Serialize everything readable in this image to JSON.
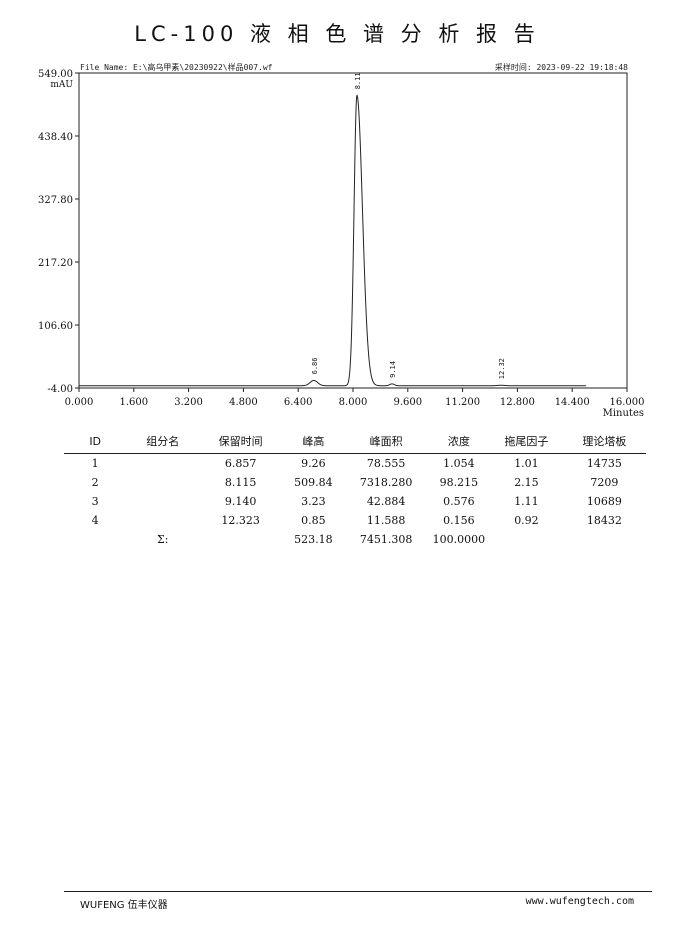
{
  "report": {
    "title": "LC-100 液 相 色 谱 分 析 报 告",
    "file_name": "File Name: E:\\高乌甲素\\20230922\\样品007.wf",
    "acq_time": "采样时间: 2023-09-22 19:18:48"
  },
  "chart_data": {
    "type": "line",
    "title": "",
    "xlabel": "Minutes",
    "ylabel": "mAU",
    "xlim": [
      0,
      16
    ],
    "ylim": [
      -4.0,
      549.0
    ],
    "x_ticks": [
      "0.000",
      "1.600",
      "3.200",
      "4.800",
      "6.400",
      "8.000",
      "9.600",
      "11.200",
      "12.800",
      "14.400",
      "16.000"
    ],
    "y_ticks": [
      "549.00",
      "438.40",
      "327.80",
      "217.20",
      "106.60",
      "-4.00"
    ],
    "peaks": [
      {
        "rt": 6.857,
        "height": 9.26,
        "width": 0.11,
        "label": "6.86"
      },
      {
        "rt": 8.115,
        "height": 509.84,
        "width": 0.085,
        "label": "8.11"
      },
      {
        "rt": 9.14,
        "height": 3.23,
        "width": 0.07,
        "label": "9.14"
      },
      {
        "rt": 12.323,
        "height": 0.85,
        "width": 0.1,
        "label": "12.32"
      }
    ],
    "grid": false,
    "series_color": "#222222"
  },
  "table": {
    "headers": [
      "ID",
      "组分名",
      "保留时间",
      "峰高",
      "峰面积",
      "浓度",
      "拖尾因子",
      "理论塔板"
    ],
    "rows": [
      [
        "1",
        "",
        "6.857",
        "9.26",
        "78.555",
        "1.054",
        "1.01",
        "14735"
      ],
      [
        "2",
        "",
        "8.115",
        "509.84",
        "7318.280",
        "98.215",
        "2.15",
        "7209"
      ],
      [
        "3",
        "",
        "9.140",
        "3.23",
        "42.884",
        "0.576",
        "1.11",
        "10689"
      ],
      [
        "4",
        "",
        "12.323",
        "0.85",
        "11.588",
        "0.156",
        "0.92",
        "18432"
      ]
    ],
    "sum_row": [
      "",
      "Σ:",
      "",
      "523.18",
      "7451.308",
      "100.0000",
      "",
      ""
    ]
  },
  "footer": {
    "left": "WUFENG 伍丰仪器",
    "right": "www.wufengtech.com"
  }
}
